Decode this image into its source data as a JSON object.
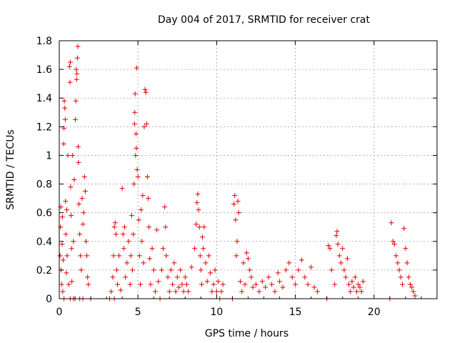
{
  "chart_data": {
    "type": "scatter",
    "title": "Day 004 of 2017, SRMTID for receiver crat",
    "xlabel": "GPS time / hours",
    "ylabel": "SRMTID / TECUs",
    "xlim": [
      0,
      24
    ],
    "ylim": [
      0,
      1.8
    ],
    "xticks": [
      0,
      5,
      10,
      15,
      20
    ],
    "xtick_labels": [
      "0",
      "5",
      "10",
      "15",
      "20"
    ],
    "yticks": [
      0,
      0.2,
      0.4,
      0.6,
      0.8,
      1,
      1.2,
      1.4,
      1.6,
      1.8
    ],
    "ytick_labels": [
      "0",
      "0.2",
      "0.4",
      "0.6",
      "0.8",
      "1",
      "1.2",
      "1.4",
      "1.6",
      "1.8"
    ],
    "grid": true,
    "marker": "+",
    "color": "#e00000",
    "series": [
      {
        "name": "SRMTID",
        "points": [
          [
            0.05,
            0.3
          ],
          [
            0.08,
            0.5
          ],
          [
            0.1,
            0.64
          ],
          [
            0.12,
            0.2
          ],
          [
            0.15,
            0.1
          ],
          [
            0.18,
            0.38
          ],
          [
            0.2,
            0.57
          ],
          [
            0.22,
            0.05
          ],
          [
            0.25,
            0.27
          ],
          [
            0.28,
            1.08
          ],
          [
            0.3,
            1.19
          ],
          [
            0.32,
            1.38
          ],
          [
            0.35,
            1.33
          ],
          [
            0.38,
            1.25
          ],
          [
            0.4,
            0.68
          ],
          [
            0.42,
            0.45
          ],
          [
            0.45,
            0.18
          ],
          [
            0.48,
            0.62
          ],
          [
            0.5,
            0.3
          ],
          [
            0.55,
            1.0
          ],
          [
            0.6,
            0.1
          ],
          [
            0.65,
            1.62
          ],
          [
            0.68,
            1.51
          ],
          [
            0.7,
            1.65
          ],
          [
            0.72,
            0.78
          ],
          [
            0.75,
            0.58
          ],
          [
            0.78,
            0.35
          ],
          [
            0.8,
            0.12
          ],
          [
            0.85,
            1.0
          ],
          [
            0.9,
            0.4
          ],
          [
            0.95,
            0.83
          ],
          [
            1.0,
            0.0
          ],
          [
            1.02,
            1.25
          ],
          [
            1.05,
            1.38
          ],
          [
            1.08,
            1.6
          ],
          [
            1.1,
            1.53
          ],
          [
            1.12,
            1.57
          ],
          [
            1.15,
            1.68
          ],
          [
            1.18,
            1.76
          ],
          [
            1.2,
            1.06
          ],
          [
            1.22,
            0.95
          ],
          [
            1.25,
            0.66
          ],
          [
            1.3,
            0.45
          ],
          [
            1.35,
            0.3
          ],
          [
            1.4,
            0.2
          ],
          [
            1.45,
            0.7
          ],
          [
            1.5,
            0.52
          ],
          [
            1.55,
            0.6
          ],
          [
            1.6,
            0.85
          ],
          [
            1.65,
            0.75
          ],
          [
            1.7,
            0.4
          ],
          [
            1.75,
            0.3
          ],
          [
            1.8,
            0.15
          ],
          [
            1.85,
            0.1
          ],
          [
            0.3,
            0.0
          ],
          [
            0.7,
            0.0
          ],
          [
            0.9,
            0.0
          ],
          [
            1.3,
            0.0
          ],
          [
            1.5,
            0.0
          ],
          [
            2.0,
            0.0
          ],
          [
            3.2,
            0.0
          ],
          [
            3.5,
            0.0
          ],
          [
            3.3,
            0.05
          ],
          [
            3.4,
            0.15
          ],
          [
            3.45,
            0.3
          ],
          [
            3.5,
            0.5
          ],
          [
            3.55,
            0.53
          ],
          [
            3.6,
            0.45
          ],
          [
            3.65,
            0.2
          ],
          [
            3.7,
            0.1
          ],
          [
            3.8,
            0.3
          ],
          [
            3.9,
            0.06
          ],
          [
            4.0,
            0.77
          ],
          [
            4.05,
            0.45
          ],
          [
            4.1,
            0.35
          ],
          [
            4.15,
            0.5
          ],
          [
            4.2,
            0.15
          ],
          [
            4.3,
            0.25
          ],
          [
            4.4,
            0.4
          ],
          [
            4.5,
            0.1
          ],
          [
            4.55,
            0.3
          ],
          [
            4.6,
            0.58
          ],
          [
            4.65,
            0.2
          ],
          [
            4.7,
            0.45
          ],
          [
            4.75,
            0.8
          ],
          [
            4.78,
            1.22
          ],
          [
            4.8,
            1.3
          ],
          [
            4.82,
            1.43
          ],
          [
            4.85,
            1.0
          ],
          [
            4.88,
            1.15
          ],
          [
            4.9,
            1.05
          ],
          [
            4.92,
            1.61
          ],
          [
            4.95,
            0.9
          ],
          [
            5.0,
            0.85
          ],
          [
            5.05,
            0.55
          ],
          [
            5.1,
            0.3
          ],
          [
            5.15,
            0.1
          ],
          [
            5.2,
            0.62
          ],
          [
            5.25,
            0.4
          ],
          [
            5.3,
            0.72
          ],
          [
            5.35,
            0.25
          ],
          [
            5.4,
            1.2
          ],
          [
            5.45,
            1.46
          ],
          [
            5.5,
            1.44
          ],
          [
            5.55,
            1.22
          ],
          [
            5.6,
            0.85
          ],
          [
            5.65,
            0.7
          ],
          [
            5.7,
            0.5
          ],
          [
            5.75,
            0.28
          ],
          [
            5.8,
            0.1
          ],
          [
            5.9,
            0.35
          ],
          [
            6.0,
            0.2
          ],
          [
            6.1,
            0.05
          ],
          [
            6.2,
            0.48
          ],
          [
            6.3,
            0.12
          ],
          [
            6.4,
            0.0
          ],
          [
            6.5,
            0.2
          ],
          [
            6.6,
            0.35
          ],
          [
            6.7,
            0.64
          ],
          [
            6.75,
            0.5
          ],
          [
            6.8,
            0.3
          ],
          [
            6.9,
            0.15
          ],
          [
            7.0,
            0.05
          ],
          [
            7.1,
            0.2
          ],
          [
            7.2,
            0.1
          ],
          [
            7.3,
            0.25
          ],
          [
            7.4,
            0.05
          ],
          [
            7.5,
            0.15
          ],
          [
            7.6,
            0.08
          ],
          [
            7.7,
            0.2
          ],
          [
            7.8,
            0.1
          ],
          [
            7.9,
            0.05
          ],
          [
            8.0,
            0.15
          ],
          [
            8.1,
            0.1
          ],
          [
            8.2,
            0.05
          ],
          [
            8.4,
            0.22
          ],
          [
            8.6,
            0.35
          ],
          [
            8.7,
            0.52
          ],
          [
            8.75,
            0.67
          ],
          [
            8.8,
            0.73
          ],
          [
            8.85,
            0.62
          ],
          [
            8.9,
            0.5
          ],
          [
            8.95,
            0.3
          ],
          [
            9.0,
            0.2
          ],
          [
            9.05,
            0.1
          ],
          [
            9.1,
            0.43
          ],
          [
            9.15,
            0.35
          ],
          [
            9.2,
            0.5
          ],
          [
            9.3,
            0.25
          ],
          [
            9.4,
            0.12
          ],
          [
            9.5,
            0.3
          ],
          [
            9.6,
            0.18
          ],
          [
            9.7,
            0.05
          ],
          [
            9.8,
            0.1
          ],
          [
            9.9,
            0.2
          ],
          [
            10.0,
            0.05
          ],
          [
            10.1,
            0.12
          ],
          [
            10.2,
            0.0
          ],
          [
            10.3,
            0.05
          ],
          [
            10.4,
            0.1
          ],
          [
            11.0,
            0.0
          ],
          [
            11.1,
            0.66
          ],
          [
            11.15,
            0.72
          ],
          [
            11.2,
            0.55
          ],
          [
            11.25,
            0.3
          ],
          [
            11.3,
            0.4
          ],
          [
            11.35,
            0.68
          ],
          [
            11.4,
            0.6
          ],
          [
            11.5,
            0.12
          ],
          [
            11.6,
            0.05
          ],
          [
            11.7,
            0.25
          ],
          [
            11.8,
            0.1
          ],
          [
            11.9,
            0.32
          ],
          [
            12.0,
            0.28
          ],
          [
            12.1,
            0.2
          ],
          [
            12.2,
            0.15
          ],
          [
            12.3,
            0.08
          ],
          [
            12.5,
            0.1
          ],
          [
            12.7,
            0.05
          ],
          [
            12.9,
            0.12
          ],
          [
            13.1,
            0.08
          ],
          [
            13.3,
            0.15
          ],
          [
            13.5,
            0.1
          ],
          [
            13.7,
            0.05
          ],
          [
            13.9,
            0.18
          ],
          [
            14.0,
            0.12
          ],
          [
            14.2,
            0.08
          ],
          [
            14.4,
            0.2
          ],
          [
            14.6,
            0.25
          ],
          [
            14.8,
            0.15
          ],
          [
            15.0,
            0.1
          ],
          [
            15.2,
            0.2
          ],
          [
            15.4,
            0.27
          ],
          [
            15.6,
            0.15
          ],
          [
            15.8,
            0.1
          ],
          [
            16.0,
            0.22
          ],
          [
            16.2,
            0.08
          ],
          [
            16.4,
            0.05
          ],
          [
            17.0,
            0.0
          ],
          [
            17.1,
            0.37
          ],
          [
            17.2,
            0.35
          ],
          [
            17.3,
            0.2
          ],
          [
            17.5,
            0.1
          ],
          [
            17.6,
            0.44
          ],
          [
            17.65,
            0.47
          ],
          [
            17.7,
            0.38
          ],
          [
            17.8,
            0.3
          ],
          [
            17.9,
            0.25
          ],
          [
            18.0,
            0.35
          ],
          [
            18.1,
            0.2
          ],
          [
            18.2,
            0.15
          ],
          [
            18.3,
            0.28
          ],
          [
            18.4,
            0.1
          ],
          [
            18.5,
            0.05
          ],
          [
            18.6,
            0.12
          ],
          [
            18.7,
            0.08
          ],
          [
            18.8,
            0.15
          ],
          [
            18.9,
            0.05
          ],
          [
            19.0,
            0.1
          ],
          [
            19.1,
            0.08
          ],
          [
            19.2,
            0.05
          ],
          [
            19.3,
            0.12
          ],
          [
            21.0,
            0.0
          ],
          [
            21.1,
            0.53
          ],
          [
            21.2,
            0.4
          ],
          [
            21.3,
            0.38
          ],
          [
            21.4,
            0.3
          ],
          [
            21.5,
            0.25
          ],
          [
            21.6,
            0.2
          ],
          [
            21.7,
            0.15
          ],
          [
            21.8,
            0.1
          ],
          [
            21.9,
            0.49
          ],
          [
            22.0,
            0.35
          ],
          [
            22.1,
            0.25
          ],
          [
            22.2,
            0.15
          ],
          [
            22.3,
            0.1
          ],
          [
            22.4,
            0.08
          ],
          [
            22.5,
            0.05
          ],
          [
            22.6,
            0.02
          ]
        ]
      }
    ]
  }
}
